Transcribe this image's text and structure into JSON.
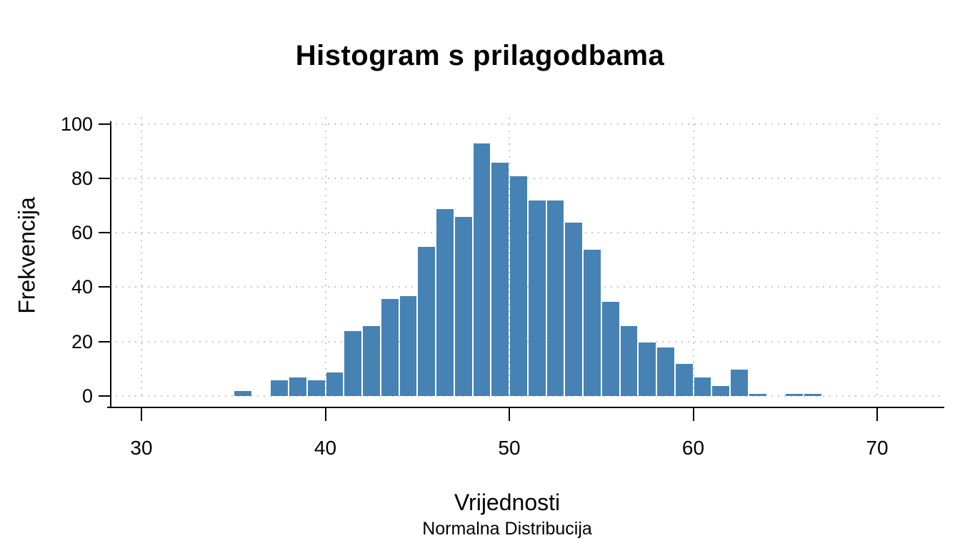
{
  "page": {
    "background_color": "#ffffff",
    "text_color": "#000000"
  },
  "chart_data": {
    "type": "bar",
    "subtype": "histogram",
    "title": "Histogram s prilagodbama",
    "xlabel": "Vrijednosti",
    "xlabel_sub": "Normalna Distribucija",
    "ylabel": "Frekvencija",
    "bin_start": 35,
    "bin_width": 1,
    "counts": [
      2,
      0,
      6,
      7,
      6,
      9,
      24,
      26,
      36,
      37,
      55,
      69,
      66,
      93,
      86,
      81,
      72,
      72,
      64,
      54,
      35,
      26,
      20,
      18,
      12,
      7,
      4,
      10,
      1,
      0,
      1,
      1
    ],
    "x_ticks": [
      30,
      40,
      50,
      60,
      70
    ],
    "y_ticks": [
      0,
      20,
      40,
      60,
      80,
      100
    ],
    "xlim": [
      28.5,
      73.5
    ],
    "ylim": [
      0,
      100
    ],
    "bar_color": "#4682B4",
    "bar_border_color": "#ffffff",
    "grid": "dotted",
    "grid_color": "#c8c8c8",
    "axis_color": "#000000",
    "legend": "none"
  }
}
